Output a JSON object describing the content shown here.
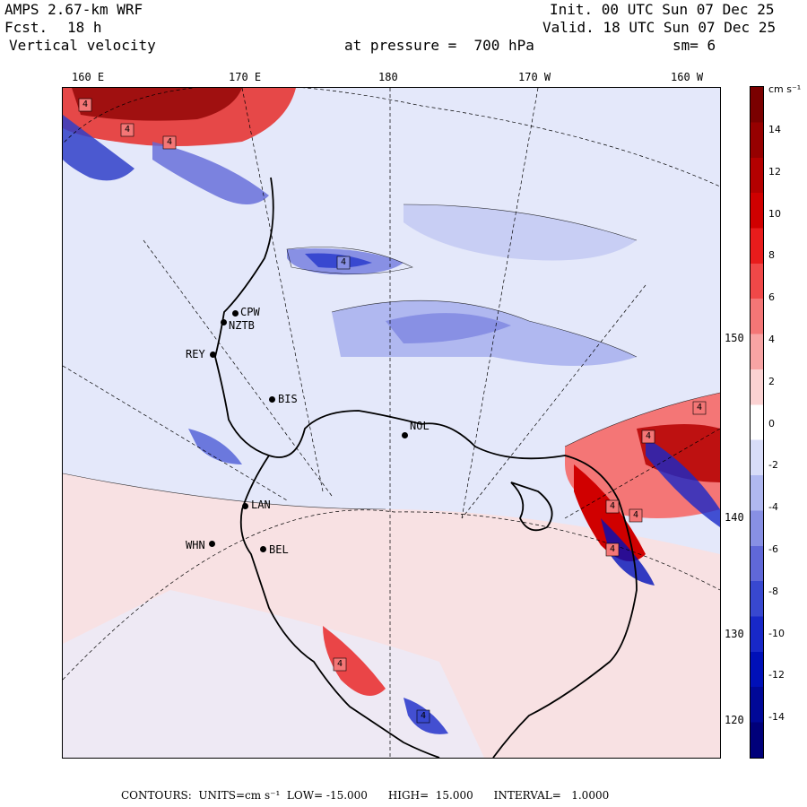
{
  "header": {
    "model": "AMPS 2.67-km WRF",
    "forecast_label": "Fcst.",
    "forecast_value": "18 h",
    "field": "Vertical velocity",
    "init": "Init. 00 UTC Sun 07 Dec 25",
    "valid": "Valid. 18 UTC Sun 07 Dec 25",
    "level": "at pressure =  700 hPa",
    "smoothing": "sm= 6"
  },
  "map": {
    "top_longitudes": [
      "160 E",
      "170 E",
      "180",
      "170 W",
      "160 W"
    ],
    "right_longitudes": [
      "150 W",
      "140 W",
      "130 W",
      "120 W"
    ],
    "stations": [
      "CPW",
      "NZTB",
      "REY",
      "BIS",
      "NOL",
      "LAN",
      "WHN",
      "BEL"
    ],
    "contour_marker": "4"
  },
  "colorbar": {
    "units_label": "cm s⁻¹",
    "ticks": [
      "14",
      "12",
      "10",
      "8",
      "6",
      "4",
      "2",
      "0",
      "-2",
      "-4",
      "-6",
      "-8",
      "-10",
      "-12",
      "-14"
    ],
    "colors": [
      "#7a0000",
      "#960000",
      "#b40000",
      "#d00000",
      "#e81c1c",
      "#f04848",
      "#f47676",
      "#f8a4a4",
      "#fbd2d2",
      "#ffffff",
      "#d8dcf8",
      "#b0b8f0",
      "#8890e4",
      "#6068d8",
      "#3848d0",
      "#1828c8",
      "#0010b8",
      "#000898",
      "#00007a"
    ]
  },
  "footer": {
    "text": "CONTOURS:  UNITS=cm s⁻¹  LOW= -15.000      HIGH=  15.000      INTERVAL=   1.0000"
  }
}
